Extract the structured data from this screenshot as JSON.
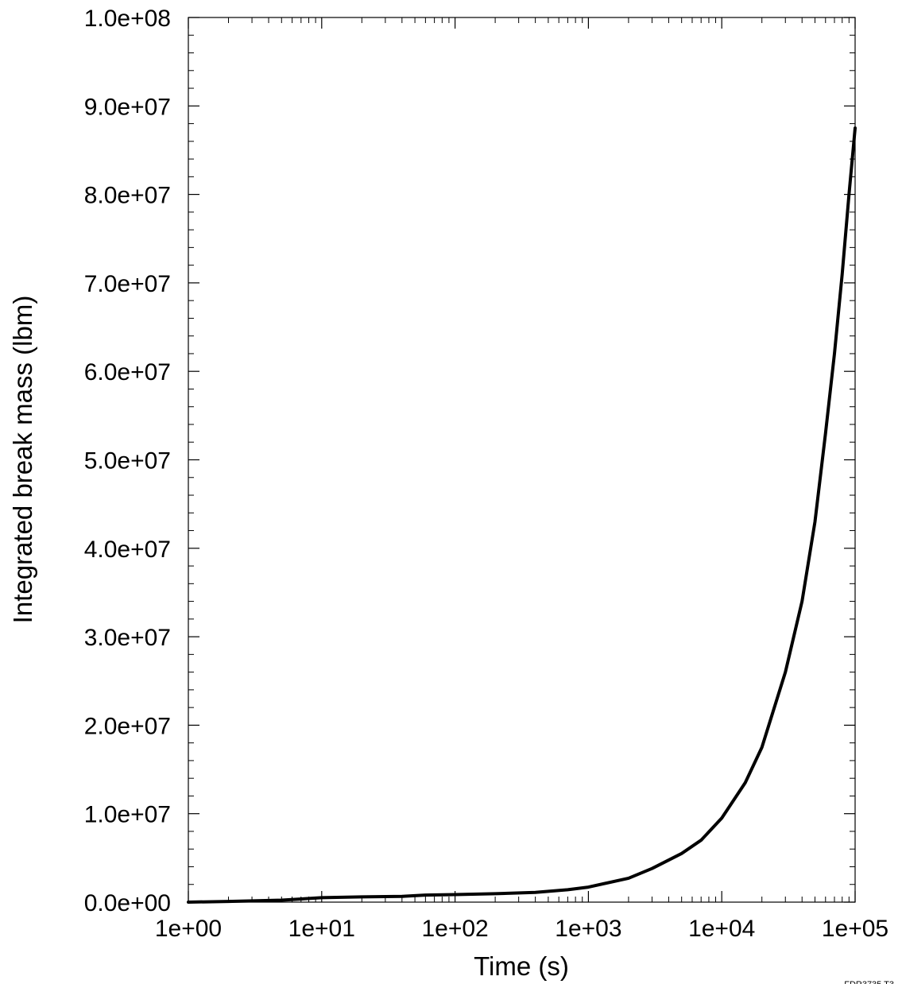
{
  "chart_data": {
    "type": "line",
    "title": "",
    "xlabel": "Time (s)",
    "ylabel": "Integrated break mass (lbm)",
    "x_scale": "log",
    "xlim": [
      1,
      100000
    ],
    "ylim": [
      0,
      100000000
    ],
    "x_tick_labels": [
      "1e+00",
      "1e+01",
      "1e+02",
      "1e+03",
      "1e+04",
      "1e+05"
    ],
    "y_tick_labels": [
      "0.0e+00",
      "1.0e+07",
      "2.0e+07",
      "3.0e+07",
      "4.0e+07",
      "5.0e+07",
      "6.0e+07",
      "7.0e+07",
      "8.0e+07",
      "9.0e+07",
      "1.0e+08"
    ],
    "grid": false,
    "legend": "none",
    "line_color": "#000000",
    "figure_id": "FDR3735 T3",
    "series": [
      {
        "x": [
          1,
          2,
          5,
          10,
          20,
          40,
          60,
          100,
          200,
          400,
          700,
          1000,
          2000,
          3000,
          5000,
          7000,
          10000,
          15000,
          20000,
          30000,
          40000,
          50000,
          60000,
          70000,
          80000,
          90000,
          100000
        ],
        "y": [
          0,
          80000,
          220000,
          500000,
          600000,
          650000,
          800000,
          850000,
          950000,
          1100000,
          1400000,
          1700000,
          2700000,
          3800000,
          5500000,
          7000000,
          9500000,
          13500000,
          17500000,
          26000000,
          34000000,
          43000000,
          53000000,
          62000000,
          71000000,
          80000000,
          87500000
        ]
      }
    ]
  }
}
